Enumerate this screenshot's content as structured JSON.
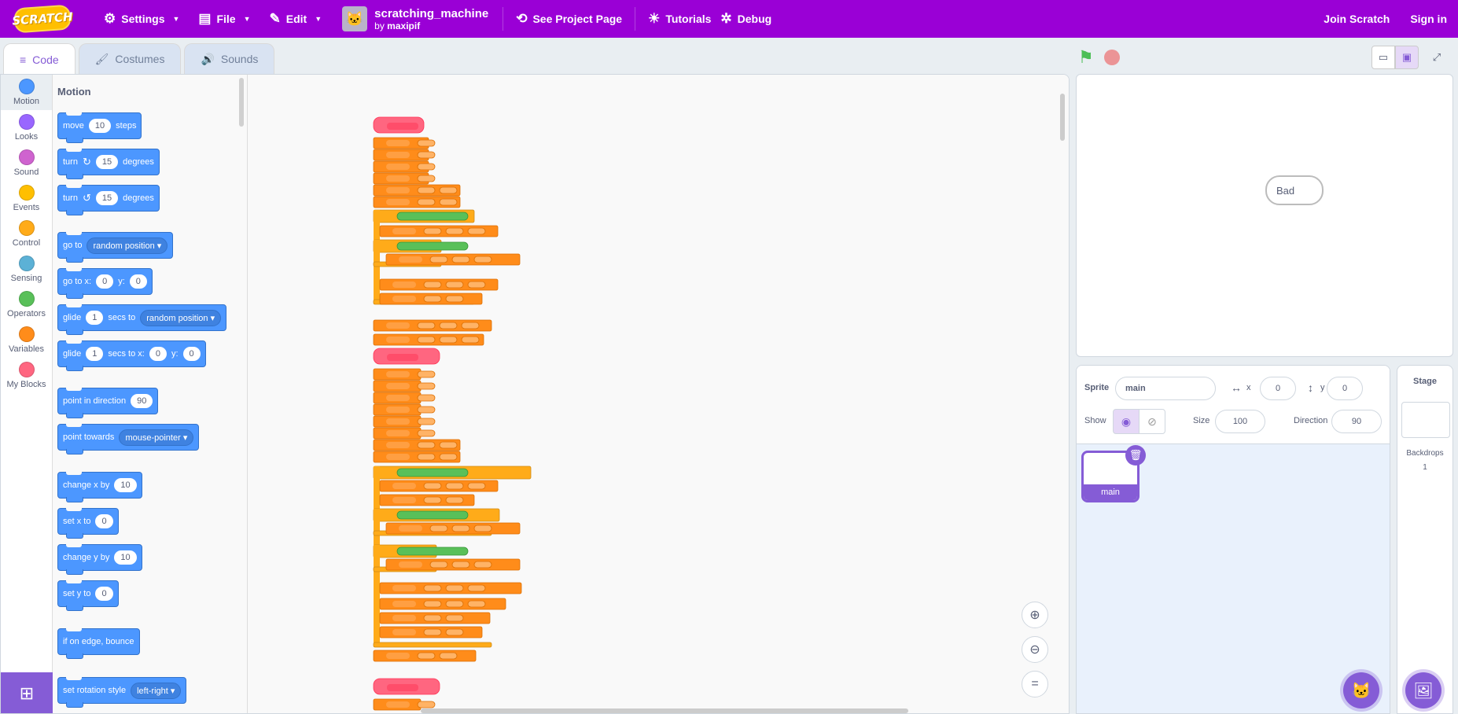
{
  "menubar": {
    "logo": "SCRATCH",
    "settings": "Settings",
    "file": "File",
    "edit": "Edit",
    "project_title": "scratching_machine",
    "by_label": "by",
    "author": "maxipif",
    "see_project": "See Project Page",
    "tutorials": "Tutorials",
    "debug": "Debug",
    "join": "Join Scratch",
    "signin": "Sign in"
  },
  "tabs": [
    "Code",
    "Costumes",
    "Sounds"
  ],
  "categories": [
    {
      "label": "Motion",
      "color": "#4c97ff"
    },
    {
      "label": "Looks",
      "color": "#9966ff"
    },
    {
      "label": "Sound",
      "color": "#cf63cf"
    },
    {
      "label": "Events",
      "color": "#ffbf00"
    },
    {
      "label": "Control",
      "color": "#ffab19"
    },
    {
      "label": "Sensing",
      "color": "#5cb1d6"
    },
    {
      "label": "Operators",
      "color": "#59c059"
    },
    {
      "label": "Variables",
      "color": "#ff8c1a"
    },
    {
      "label": "My Blocks",
      "color": "#ff6680"
    }
  ],
  "palette": {
    "title": "Motion",
    "move": {
      "pre": "move",
      "val": "10",
      "post": "steps"
    },
    "turn_right": {
      "pre": "turn",
      "val": "15",
      "post": "degrees"
    },
    "turn_left": {
      "pre": "turn",
      "val": "15",
      "post": "degrees"
    },
    "goto": {
      "pre": "go to",
      "drop": "random position"
    },
    "gotoxy": {
      "pre": "go to x:",
      "x": "0",
      "mid": "y:",
      "y": "0"
    },
    "glide_to": {
      "pre": "glide",
      "val": "1",
      "mid": "secs to",
      "drop": "random position"
    },
    "glide_xy": {
      "pre": "glide",
      "val": "1",
      "mid": "secs to x:",
      "x": "0",
      "ylab": "y:",
      "y": "0"
    },
    "point_dir": {
      "pre": "point in direction",
      "val": "90"
    },
    "point_towards": {
      "pre": "point towards",
      "drop": "mouse-pointer"
    },
    "change_x": {
      "pre": "change x by",
      "val": "10"
    },
    "set_x": {
      "pre": "set x to",
      "val": "0"
    },
    "change_y": {
      "pre": "change y by",
      "val": "10"
    },
    "set_y": {
      "pre": "set y to",
      "val": "0"
    },
    "bounce": {
      "pre": "if on edge, bounce"
    },
    "rotation": {
      "pre": "set rotation style",
      "drop": "left-right"
    }
  },
  "stage": {
    "bubble": "Bad"
  },
  "sprite_info": {
    "sprite_label": "Sprite",
    "name": "main",
    "x_label": "x",
    "x": "0",
    "y_label": "y",
    "y": "0",
    "show_label": "Show",
    "size_label": "Size",
    "size": "100",
    "direction_label": "Direction",
    "direction": "90"
  },
  "sprites": [
    {
      "name": "main"
    }
  ],
  "stage_pane": {
    "title": "Stage",
    "backdrops_label": "Backdrops",
    "backdrops_count": "1"
  }
}
